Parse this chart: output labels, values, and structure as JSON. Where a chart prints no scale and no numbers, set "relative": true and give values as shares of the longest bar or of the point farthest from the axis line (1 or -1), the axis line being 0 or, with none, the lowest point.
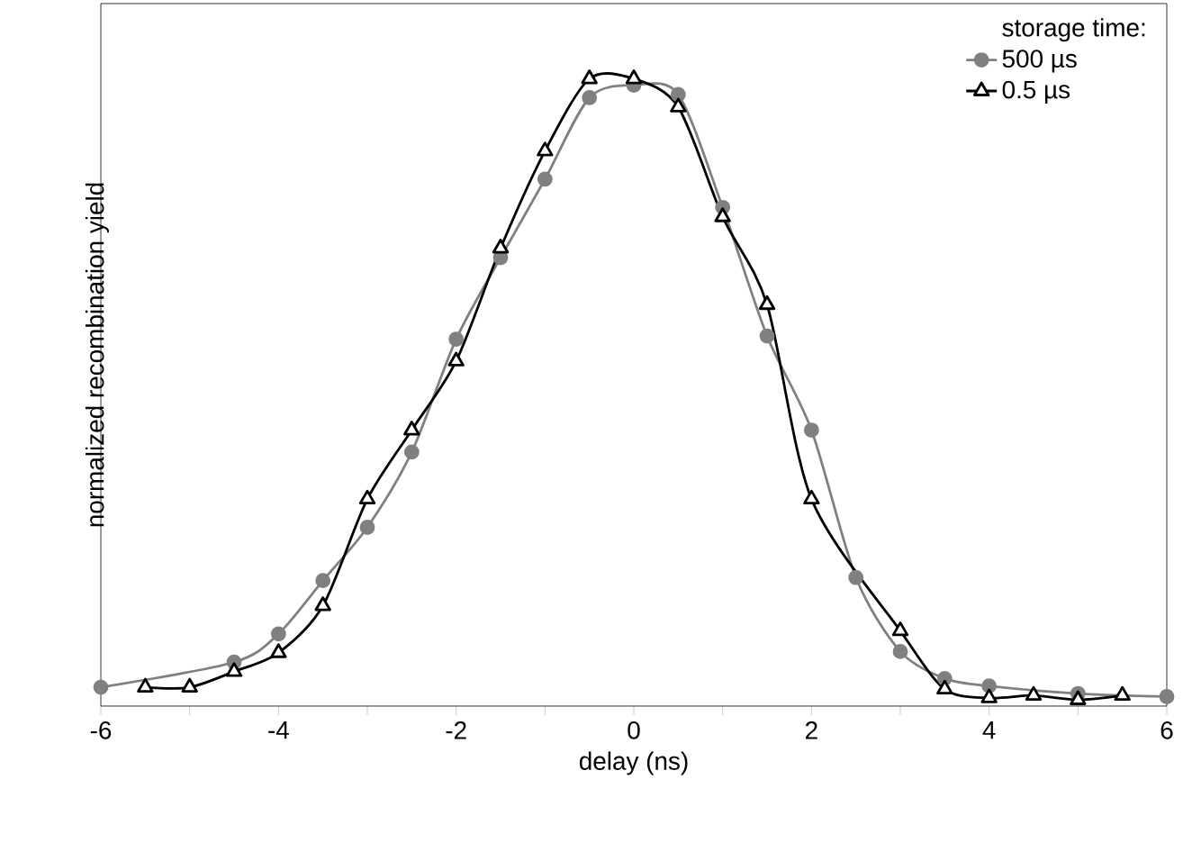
{
  "chart_data": {
    "type": "line",
    "relative": true,
    "xlabel": "delay (ns)",
    "ylabel": "normalized recombination yield",
    "legend_title": "storage time:",
    "legend": "top right",
    "grid": false,
    "xlim": [
      -6,
      6
    ],
    "xticks": [
      -6,
      {
        "value": -5,
        "label": null
      },
      -4,
      {
        "value": -3,
        "label": null
      },
      -2,
      {
        "value": -1,
        "label": null
      },
      0,
      {
        "value": 1,
        "label": null
      },
      2,
      {
        "value": 3,
        "label": null
      },
      4,
      {
        "value": 5,
        "label": null
      },
      6
    ],
    "series": [
      {
        "name": "500 µs",
        "color": "#808080",
        "marker": "circle",
        "x": [
          -6,
          -4.5,
          -4,
          -3.5,
          -3,
          -2.5,
          -2,
          -1.5,
          -1,
          -0.5,
          0,
          0.5,
          1,
          1.5,
          2,
          2.5,
          3,
          3.5,
          4,
          5,
          6
        ],
        "values": [
          0.03,
          0.07,
          0.115,
          0.2,
          0.285,
          0.405,
          0.585,
          0.715,
          0.84,
          0.97,
          0.99,
          0.975,
          0.795,
          0.59,
          0.44,
          0.205,
          0.087,
          0.044,
          0.032,
          0.02,
          0.015
        ]
      },
      {
        "name": "0.5 µs",
        "color": "#000000",
        "marker": "triangle",
        "x": [
          -5.5,
          -5,
          -4.5,
          -4,
          -3.5,
          -3,
          -2.5,
          -2,
          -1.5,
          -1,
          -0.5,
          0,
          0.5,
          1,
          1.5,
          2,
          3,
          3.5,
          4,
          4.5,
          5,
          5.5
        ],
        "values": [
          0.03,
          0.03,
          0.055,
          0.085,
          0.16,
          0.33,
          0.44,
          0.55,
          0.73,
          0.885,
          1.0,
          1.0,
          0.955,
          0.78,
          0.64,
          0.33,
          0.12,
          0.027,
          0.013,
          0.017,
          0.01,
          0.017
        ]
      }
    ]
  }
}
